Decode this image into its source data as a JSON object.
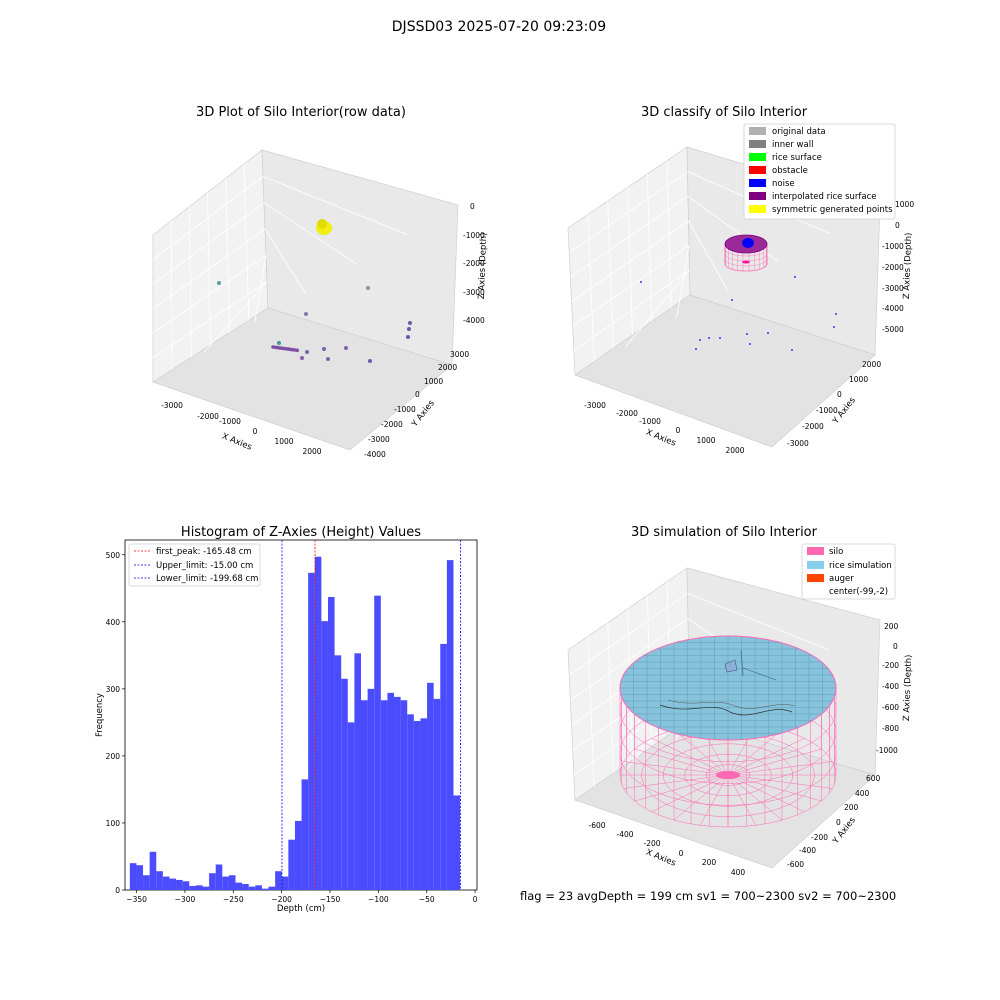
{
  "suptitle": "DJSSD03 2025-07-20 09:23:09",
  "status": "flag = 23   avgDepth = 199 cm   sv1 = 700~2300   sv2 = 700~2300",
  "chart_data": [
    {
      "type": "scatter",
      "projection": "3d",
      "title": "3D Plot of Silo Interior(row data)",
      "xlabel": "X Axies",
      "ylabel": "Y Axies",
      "zlabel": "Z Axies (Depth)",
      "xticks": [
        "-3000",
        "-2000",
        "-1000",
        "0",
        "1000",
        "2000"
      ],
      "yticks": [
        "-4000",
        "-3000",
        "-2000",
        "-1000",
        "0",
        "1000",
        "2000",
        "3000"
      ],
      "zticks": [
        "0",
        "-1000",
        "-2000",
        "-3000",
        "-4000"
      ],
      "grid": true,
      "colors": {
        "top_cluster": "#f2ee10",
        "points": "#7f62a8",
        "teal_point": "#3f9a93"
      }
    },
    {
      "type": "scatter",
      "projection": "3d",
      "title": "3D classify of Silo Interior",
      "xlabel": "X Axies",
      "ylabel": "Y Axies",
      "zlabel": "Z Axies (Depth)",
      "xticks": [
        "-3000",
        "-2000",
        "-1000",
        "0",
        "1000",
        "2000"
      ],
      "yticks": [
        "-3000",
        "-2000",
        "-1000",
        "0",
        "1000",
        "2000"
      ],
      "zticks": [
        "1000",
        "0",
        "-1000",
        "-2000",
        "-3000",
        "-4000",
        "-5000"
      ],
      "grid": true,
      "legend_position": "top-right",
      "legend": [
        {
          "label": "original data",
          "color": "#b0b0b0"
        },
        {
          "label": "inner wall",
          "color": "#808080"
        },
        {
          "label": "rice surface",
          "color": "#00ff00"
        },
        {
          "label": "obstacle",
          "color": "#ff0000"
        },
        {
          "label": "noise",
          "color": "#0000ff"
        },
        {
          "label": "interpolated rice surface",
          "color": "#800080"
        },
        {
          "label": "symmetric generated points",
          "color": "#ffff00"
        }
      ]
    },
    {
      "type": "bar",
      "title": "Histogram of Z-Axies (Height) Values",
      "xlabel": "Depth (cm)",
      "ylabel": "Frequency",
      "xlim": [
        -362,
        2
      ],
      "ylim": [
        0,
        522
      ],
      "xticks": [
        -350,
        -300,
        -250,
        -200,
        -150,
        -100,
        -50,
        0
      ],
      "yticks": [
        0,
        100,
        200,
        300,
        400,
        500
      ],
      "bar_color": "#4b4bff",
      "bin_start": -357,
      "bin_width": 6.83,
      "values": [
        40,
        37,
        22,
        57,
        28,
        20,
        17,
        15,
        13,
        6,
        7,
        5,
        25,
        38,
        20,
        22,
        11,
        9,
        5,
        7,
        2,
        5,
        28,
        20,
        75,
        103,
        165,
        473,
        497,
        401,
        437,
        350,
        315,
        250,
        353,
        283,
        300,
        439,
        283,
        294,
        288,
        283,
        262,
        252,
        256,
        309,
        285,
        367,
        492,
        141
      ],
      "vlines": [
        {
          "label": "first_peak: -165.48 cm",
          "x": -165.48,
          "color": "#ff0000"
        },
        {
          "label": "Upper_limit: -15.00 cm",
          "x": -15.0,
          "color": "#0000ff"
        },
        {
          "label": "Lower_limit: -199.68 cm",
          "x": -199.68,
          "color": "#0000ff"
        }
      ],
      "legend_position": "top-left"
    },
    {
      "type": "surface",
      "projection": "3d",
      "title": "3D simulation of Silo Interior",
      "xlabel": "X Axies",
      "ylabel": "Y Axies",
      "zlabel": "Z Axies (Depth)",
      "xticks": [
        "-600",
        "-400",
        "-200",
        "0",
        "200",
        "400"
      ],
      "yticks": [
        "-600",
        "-400",
        "-200",
        "0",
        "200",
        "400",
        "600"
      ],
      "zticks": [
        "200",
        "0",
        "-200",
        "-400",
        "-600",
        "-800",
        "-1000"
      ],
      "grid": true,
      "legend_position": "top-right",
      "legend": [
        {
          "label": "silo",
          "color": "#ff69b4"
        },
        {
          "label": "rice simulation",
          "color": "#87ceeb"
        },
        {
          "label": "auger",
          "color": "#ff4500"
        },
        {
          "label": "center(-99,-2)",
          "color": "#ffffff"
        }
      ]
    }
  ]
}
